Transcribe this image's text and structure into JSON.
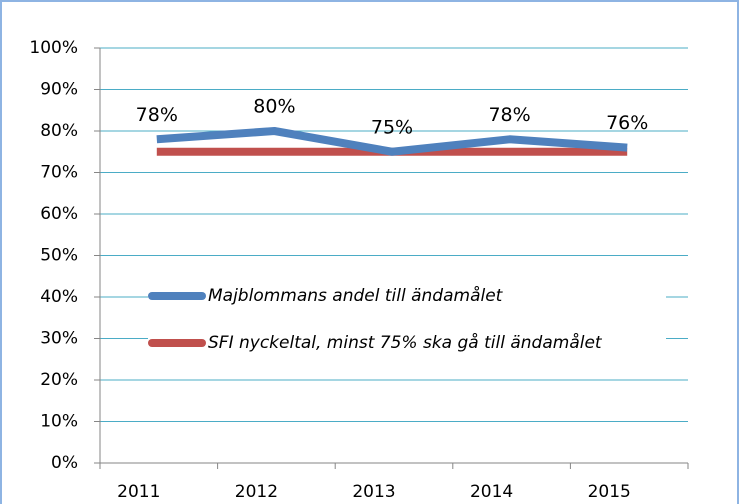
{
  "chart_data": {
    "type": "line",
    "categories": [
      "2011",
      "2012",
      "2013",
      "2014",
      "2015"
    ],
    "series": [
      {
        "name": "Majblommans andel till ändamålet",
        "color": "#4f81bd",
        "values": [
          78,
          80,
          75,
          78,
          76
        ],
        "value_labels": [
          "78%",
          "80%",
          "75%",
          "78%",
          "76%"
        ]
      },
      {
        "name": "SFI nyckeltal, minst 75% ska gå till ändamålet",
        "color": "#c0504d",
        "values": [
          75,
          75,
          75,
          75,
          75
        ]
      }
    ],
    "ylim": [
      0,
      100
    ],
    "yticks": [
      {
        "value": 0,
        "label": "0%"
      },
      {
        "value": 10,
        "label": "10%"
      },
      {
        "value": 20,
        "label": "20%"
      },
      {
        "value": 30,
        "label": "30%"
      },
      {
        "value": 40,
        "label": "40%"
      },
      {
        "value": 50,
        "label": "50%"
      },
      {
        "value": 60,
        "label": "60%"
      },
      {
        "value": 70,
        "label": "70%"
      },
      {
        "value": 80,
        "label": "80%"
      },
      {
        "value": 90,
        "label": "90%"
      },
      {
        "value": 100,
        "label": "100%"
      }
    ],
    "grid": true,
    "legend": "center"
  }
}
